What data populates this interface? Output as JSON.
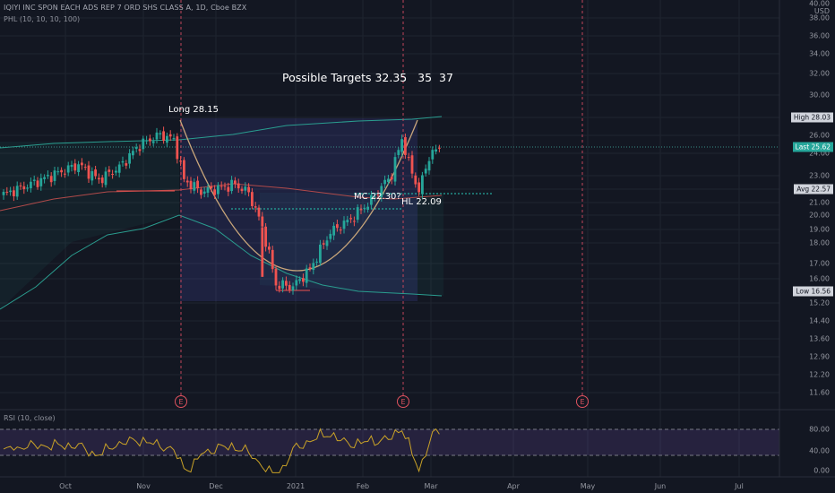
{
  "header": {
    "symbol_line": "IQIYI INC SPON EACH ADS REP 7 ORD SHS CLASS A, 1D, Cboe BZX",
    "indicator_line": "PHL (10, 10, 10, 100)",
    "rsi_line": "RSI (10, close)"
  },
  "annotations": {
    "targets": "Possible Targets 32.35   35  37",
    "long": "Long 28.15",
    "mc": "MC 22.30?",
    "hl": "HL 22.09"
  },
  "price_axis": {
    "currency": "USD",
    "ticks": [
      "40.00",
      "38.00",
      "36.00",
      "34.00",
      "32.00",
      "30.00",
      "28.00",
      "26.00",
      "24.00",
      "23.00",
      "22.00",
      "21.00",
      "20.00",
      "19.00",
      "18.00",
      "17.00",
      "16.00",
      "15.20",
      "14.40",
      "13.60",
      "12.90",
      "12.20",
      "11.60"
    ]
  },
  "rsi_axis": {
    "ticks": [
      "80.00",
      "40.00",
      "0.00"
    ]
  },
  "price_tags": {
    "high": "High  28.03",
    "last": "Last  25.62",
    "avg": "Avg  22.57",
    "low": "Low  16.56"
  },
  "time_axis": [
    "Oct",
    "Nov",
    "Dec",
    "2021",
    "Feb",
    "Mar",
    "Apr",
    "May",
    "Jun",
    "Jul"
  ],
  "events": [
    "E",
    "E",
    "E"
  ],
  "colors": {
    "background": "#131722",
    "up": "#26a69a",
    "down": "#ef5350",
    "cup_curve": "#c9a67a",
    "rsi_line": "#c9a227",
    "rsi_band": "#7e57c2",
    "event": "#e0535f"
  },
  "chart_data": {
    "type": "candlestick",
    "title": "IQIYI INC SPON EACH ADS REP 7 ORD SHS CLASS A, 1D, Cboe BZX",
    "y_scale": "log",
    "price_levels": {
      "high": 28.03,
      "last": 25.62,
      "avg": 22.57,
      "low": 16.56,
      "long_entry": 28.15,
      "mc": 22.3,
      "hl": 22.09
    },
    "targets": [
      32.35,
      35,
      37
    ],
    "x_categories": [
      "Oct",
      "Nov",
      "Dec",
      "2021",
      "Feb",
      "Mar",
      "Apr",
      "May",
      "Jun",
      "Jul"
    ],
    "close_keypoints": [
      {
        "t": 0,
        "close": 22.2
      },
      {
        "t": 8,
        "close": 22.9
      },
      {
        "t": 15,
        "close": 23.6
      },
      {
        "t": 22,
        "close": 24.3
      },
      {
        "t": 28,
        "close": 23.2
      },
      {
        "t": 34,
        "close": 24.1
      },
      {
        "t": 40,
        "close": 25.8
      },
      {
        "t": 46,
        "close": 26.6
      },
      {
        "t": 50,
        "close": 26.2
      },
      {
        "t": 53,
        "close": 23.2
      },
      {
        "t": 58,
        "close": 22.4
      },
      {
        "t": 63,
        "close": 22.6
      },
      {
        "t": 68,
        "close": 22.9
      },
      {
        "t": 72,
        "close": 22.3
      },
      {
        "t": 76,
        "close": 20.1
      },
      {
        "t": 80,
        "close": 16.9
      },
      {
        "t": 85,
        "close": 16.8
      },
      {
        "t": 90,
        "close": 17.7
      },
      {
        "t": 96,
        "close": 19.8
      },
      {
        "t": 102,
        "close": 20.6
      },
      {
        "t": 108,
        "close": 21.8
      },
      {
        "t": 114,
        "close": 23.6
      },
      {
        "t": 117,
        "close": 26.3
      },
      {
        "t": 119,
        "close": 24.4
      },
      {
        "t": 122,
        "close": 22.4
      },
      {
        "t": 125,
        "close": 24.9
      },
      {
        "t": 128,
        "close": 25.6
      }
    ],
    "rsi": {
      "levels": [
        80,
        30
      ],
      "range": [
        0,
        100
      ]
    }
  }
}
